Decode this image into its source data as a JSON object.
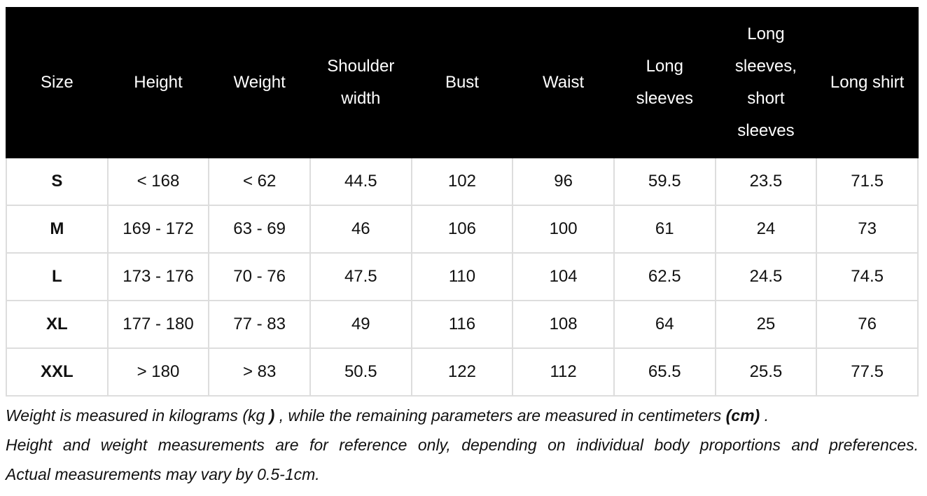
{
  "table": {
    "header": [
      "Size",
      "Height",
      "Weight",
      "Shoulder width",
      "Bust",
      "Waist",
      "Long sleeves",
      "Long sleeves, short sleeves",
      "Long shirt"
    ],
    "rows": [
      [
        "S",
        "< 168",
        "< 62",
        "44.5",
        "102",
        "96",
        "59.5",
        "23.5",
        "71.5"
      ],
      [
        "M",
        "169 - 172",
        "63 - 69",
        "46",
        "106",
        "100",
        "61",
        "24",
        "73"
      ],
      [
        "L",
        "173 - 176",
        "70 - 76",
        "47.5",
        "110",
        "104",
        "62.5",
        "24.5",
        "74.5"
      ],
      [
        "XL",
        "177 - 180",
        "77 - 83",
        "49",
        "116",
        "108",
        "64",
        "25",
        "76"
      ],
      [
        "XXL",
        "> 180",
        "> 83",
        "50.5",
        "122",
        "112",
        "65.5",
        "25.5",
        "77.5"
      ]
    ]
  },
  "notes": {
    "first": [
      "Weight is measured in kilograms (kg ",
      ")",
      " , while the remaining parameters are measured in centimeters ",
      "(cm)",
      " ."
    ],
    "second": "Height and weight measurements are for reference only, depending on individual body proportions and preferences.",
    "third": "Actual measurements may vary by 0.5-1cm."
  }
}
